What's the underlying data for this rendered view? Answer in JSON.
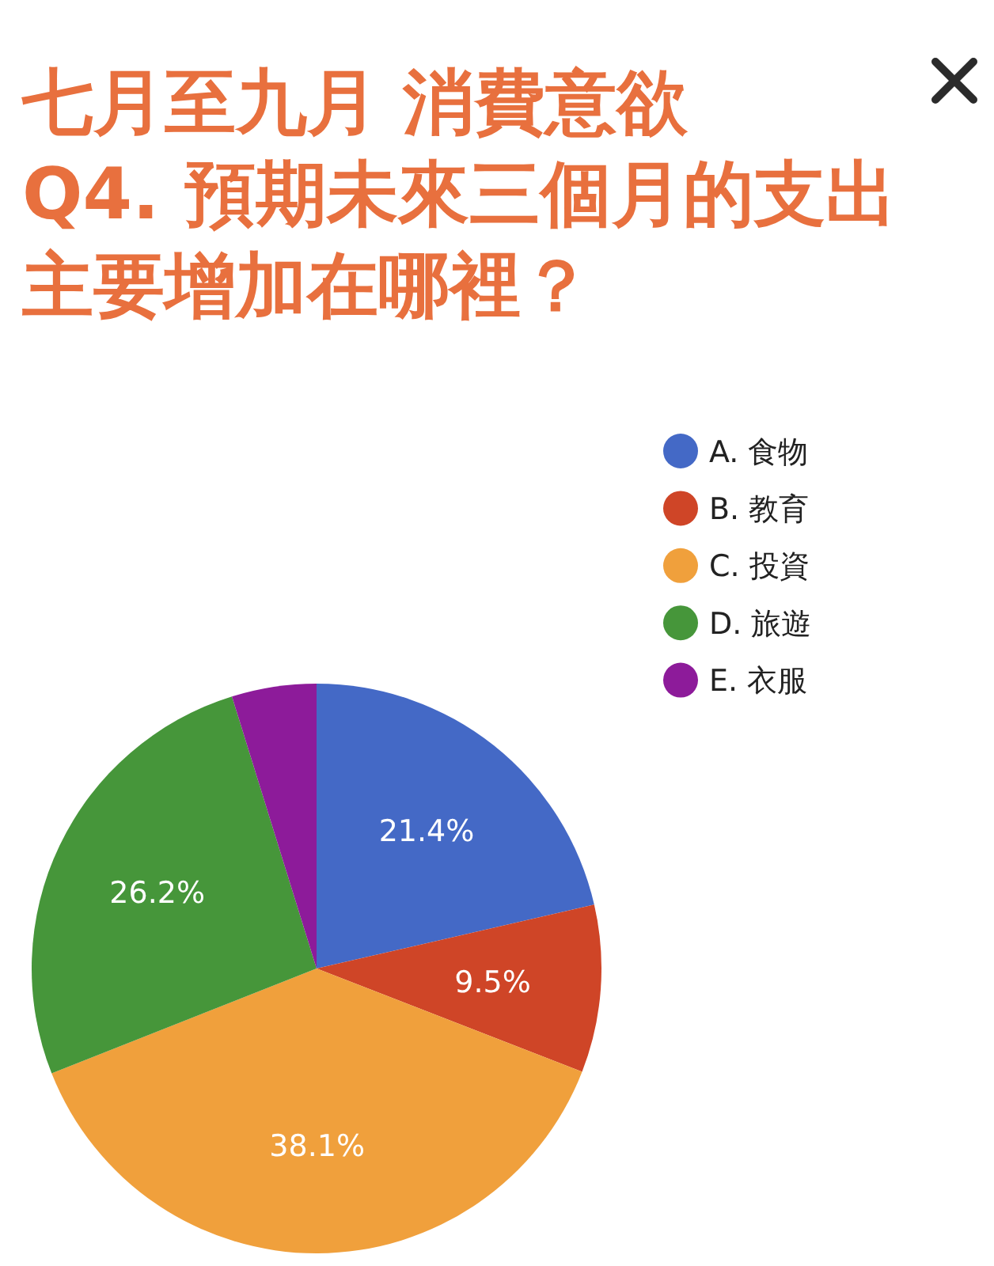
{
  "chart_data": {
    "type": "pie",
    "title": "七月至九月 消費意欲",
    "subtitle": "Q4. 預期未來三個月的支出主要增加在哪裡？",
    "categories": [
      "A. 食物",
      "B. 教育",
      "C. 投資",
      "D. 旅遊",
      "E. 衣服"
    ],
    "values": [
      21.4,
      9.5,
      38.1,
      26.2,
      4.8
    ],
    "colors": [
      "#4469c6",
      "#cf4527",
      "#f0a03c",
      "#46963a",
      "#8d1b9a"
    ],
    "value_labels": [
      "21.4%",
      "9.5%",
      "38.1%",
      "26.2%",
      null
    ],
    "legend": "top right"
  }
}
